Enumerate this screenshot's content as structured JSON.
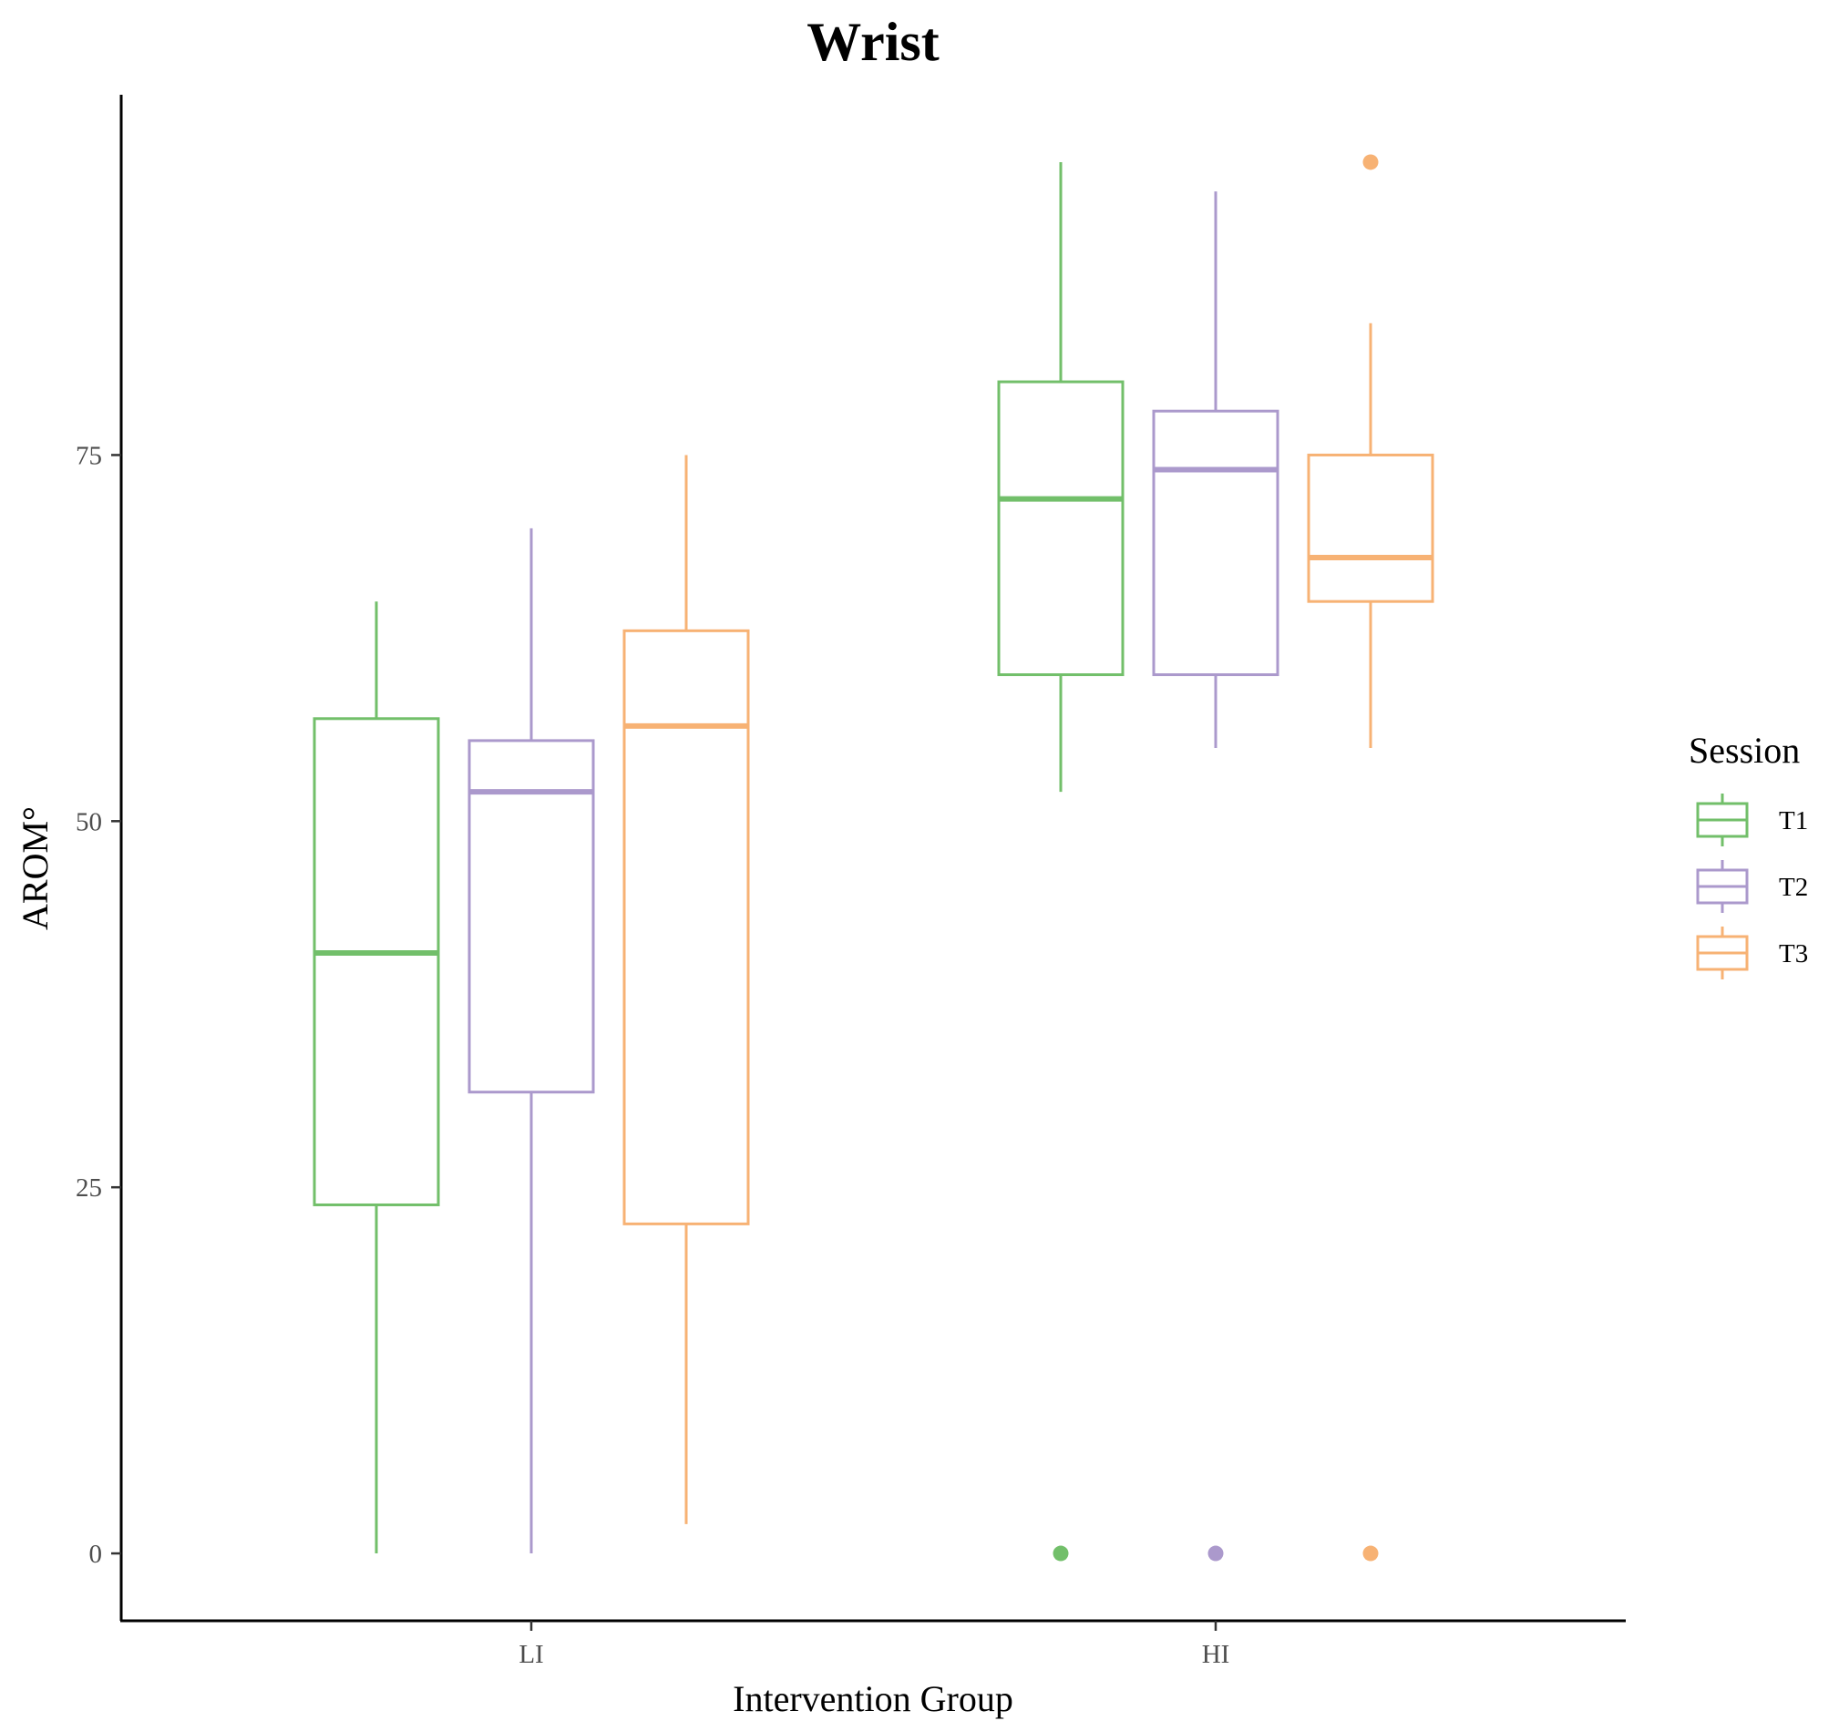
{
  "chart_data": {
    "type": "boxplot",
    "title": "Wrist",
    "xlabel": "Intervention Group",
    "ylabel": "AROM°",
    "categories": [
      "LI",
      "HI"
    ],
    "y_ticks": [
      0,
      25,
      50,
      75
    ],
    "ylim": [
      -4.6,
      99.6
    ],
    "grid": false,
    "legend": {
      "title": "Session",
      "position": "right"
    },
    "series": [
      {
        "name": "T1",
        "color": "#72BF6A",
        "boxes": [
          {
            "category": "LI",
            "whisker_low": 0,
            "q1": 23.8,
            "median": 41,
            "q3": 57,
            "whisker_high": 65,
            "outliers": []
          },
          {
            "category": "HI",
            "whisker_low": 52,
            "q1": 60,
            "median": 72,
            "q3": 80,
            "whisker_high": 95,
            "outliers": [
              0
            ]
          }
        ]
      },
      {
        "name": "T2",
        "color": "#AB99CC",
        "boxes": [
          {
            "category": "LI",
            "whisker_low": 0,
            "q1": 31.5,
            "median": 52,
            "q3": 55.5,
            "whisker_high": 70,
            "outliers": []
          },
          {
            "category": "HI",
            "whisker_low": 55,
            "q1": 60,
            "median": 74,
            "q3": 78,
            "whisker_high": 93,
            "outliers": [
              0
            ]
          }
        ]
      },
      {
        "name": "T3",
        "color": "#F7B274",
        "boxes": [
          {
            "category": "LI",
            "whisker_low": 2,
            "q1": 22.5,
            "median": 56.5,
            "q3": 63,
            "whisker_high": 75,
            "outliers": []
          },
          {
            "category": "HI",
            "whisker_low": 55,
            "q1": 65,
            "median": 68,
            "q3": 75,
            "whisker_high": 84,
            "outliers": [
              0,
              95
            ]
          }
        ]
      }
    ]
  }
}
